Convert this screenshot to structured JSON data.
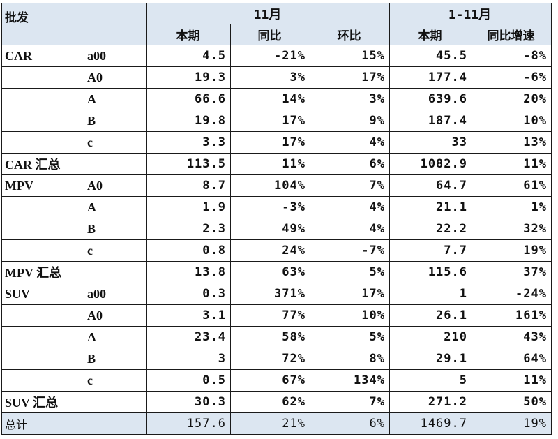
{
  "header": {
    "corner": "批发",
    "group_month": "11月",
    "group_ytd": "1-11月",
    "col_current": "本期",
    "col_yoy": "同比",
    "col_mom": "环比",
    "col_current_ytd": "本期",
    "col_yoy_growth": "同比增速"
  },
  "rows": [
    {
      "cat": "CAR",
      "sub": "a00",
      "cur": "4.5",
      "yoy": "-21%",
      "mom": "15%",
      "ytd": "45.5",
      "ytd_yoy": "-8%"
    },
    {
      "cat": "",
      "sub": "A0",
      "cur": "19.3",
      "yoy": "3%",
      "mom": "17%",
      "ytd": "177.4",
      "ytd_yoy": "-6%"
    },
    {
      "cat": "",
      "sub": "A",
      "cur": "66.6",
      "yoy": "14%",
      "mom": "3%",
      "ytd": "639.6",
      "ytd_yoy": "20%"
    },
    {
      "cat": "",
      "sub": "B",
      "cur": "19.8",
      "yoy": "17%",
      "mom": "9%",
      "ytd": "187.4",
      "ytd_yoy": "10%"
    },
    {
      "cat": "",
      "sub": "c",
      "cur": "3.3",
      "yoy": "17%",
      "mom": "4%",
      "ytd": "33",
      "ytd_yoy": "13%"
    },
    {
      "cat": "CAR 汇总",
      "sub": "",
      "cur": "113.5",
      "yoy": "11%",
      "mom": "6%",
      "ytd": "1082.9",
      "ytd_yoy": "11%"
    },
    {
      "cat": "MPV",
      "sub": "A0",
      "cur": "8.7",
      "yoy": "104%",
      "mom": "7%",
      "ytd": "64.7",
      "ytd_yoy": "61%"
    },
    {
      "cat": "",
      "sub": "A",
      "cur": "1.9",
      "yoy": "-3%",
      "mom": "4%",
      "ytd": "21.1",
      "ytd_yoy": "1%"
    },
    {
      "cat": "",
      "sub": "B",
      "cur": "2.3",
      "yoy": "49%",
      "mom": "4%",
      "ytd": "22.2",
      "ytd_yoy": "32%"
    },
    {
      "cat": "",
      "sub": "c",
      "cur": "0.8",
      "yoy": "24%",
      "mom": "-7%",
      "ytd": "7.7",
      "ytd_yoy": "19%"
    },
    {
      "cat": "MPV 汇总",
      "sub": "",
      "cur": "13.8",
      "yoy": "63%",
      "mom": "5%",
      "ytd": "115.6",
      "ytd_yoy": "37%"
    },
    {
      "cat": "SUV",
      "sub": "a00",
      "cur": "0.3",
      "yoy": "371%",
      "mom": "17%",
      "ytd": "1",
      "ytd_yoy": "-24%"
    },
    {
      "cat": "",
      "sub": "A0",
      "cur": "3.1",
      "yoy": "77%",
      "mom": "10%",
      "ytd": "26.1",
      "ytd_yoy": "161%"
    },
    {
      "cat": "",
      "sub": "A",
      "cur": "23.4",
      "yoy": "58%",
      "mom": "5%",
      "ytd": "210",
      "ytd_yoy": "43%"
    },
    {
      "cat": "",
      "sub": "B",
      "cur": "3",
      "yoy": "72%",
      "mom": "8%",
      "ytd": "29.1",
      "ytd_yoy": "64%"
    },
    {
      "cat": "",
      "sub": "c",
      "cur": "0.5",
      "yoy": "67%",
      "mom": "134%",
      "ytd": "5",
      "ytd_yoy": "11%"
    },
    {
      "cat": "SUV 汇总",
      "sub": "",
      "cur": "30.3",
      "yoy": "62%",
      "mom": "7%",
      "ytd": "271.2",
      "ytd_yoy": "50%"
    },
    {
      "cat": "总计",
      "sub": "",
      "cur": "157.6",
      "yoy": "21%",
      "mom": "6%",
      "ytd": "1469.7",
      "ytd_yoy": "19%",
      "total": true
    }
  ],
  "colors": {
    "header_bg": "#dce6f1",
    "total_bg": "#dce6f1",
    "border": "#1a1a1a"
  }
}
